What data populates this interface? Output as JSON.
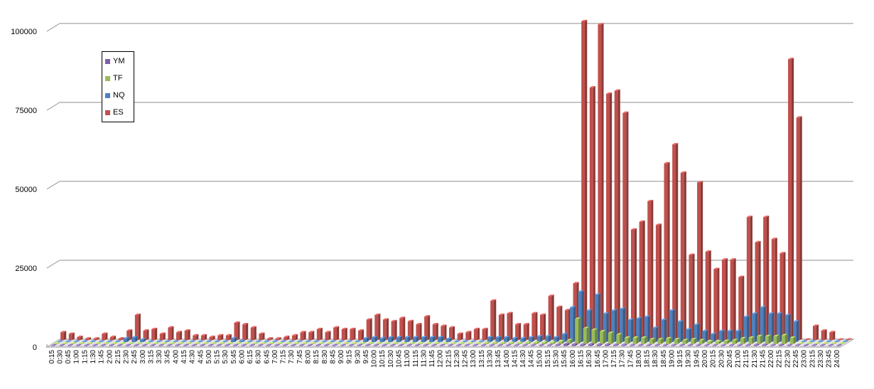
{
  "chart_data": {
    "type": "bar",
    "title": "",
    "xlabel": "",
    "ylabel": "",
    "ylim": [
      0,
      100000
    ],
    "yticks": [
      "0",
      "25000",
      "50000",
      "75000",
      "100000"
    ],
    "grid": true,
    "legend_position": "top-left",
    "categories": [
      "0:15",
      "0:30",
      "0:45",
      "1:00",
      "1:15",
      "1:30",
      "1:45",
      "2:00",
      "2:15",
      "2:30",
      "2:45",
      "3:00",
      "3:15",
      "3:30",
      "3:45",
      "4:00",
      "4:15",
      "4:30",
      "4:45",
      "5:00",
      "5:15",
      "5:30",
      "5:45",
      "6:00",
      "6:15",
      "6:30",
      "6:45",
      "7:00",
      "7:15",
      "7:30",
      "7:45",
      "8:00",
      "8:15",
      "8:30",
      "8:45",
      "9:00",
      "9:15",
      "9:30",
      "9:45",
      "10:00",
      "10:15",
      "10:30",
      "10:45",
      "11:00",
      "11:15",
      "11:30",
      "11:45",
      "12:00",
      "12:15",
      "12:30",
      "12:45",
      "13:00",
      "13:15",
      "13:30",
      "13:45",
      "14:00",
      "14:15",
      "14:30",
      "14:45",
      "15:00",
      "15:15",
      "15:30",
      "15:45",
      "16:00",
      "16:15",
      "16:30",
      "16:45",
      "17:00",
      "17:15",
      "17:30",
      "17:45",
      "18:00",
      "18:15",
      "18:30",
      "18:45",
      "19:00",
      "19:15",
      "19:30",
      "19:45",
      "20:00",
      "20:15",
      "20:30",
      "20:45",
      "21:00",
      "21:15",
      "21:30",
      "21:45",
      "22:00",
      "22:15",
      "22:30",
      "22:45",
      "23:00",
      "23:15",
      "23:30",
      "23:45",
      "24:00"
    ],
    "series": [
      {
        "name": "YM",
        "color": "#7f5fa8",
        "values": [
          0,
          0,
          0,
          0,
          0,
          0,
          0,
          0,
          100,
          100,
          50,
          0,
          0,
          0,
          0,
          0,
          0,
          0,
          0,
          0,
          0,
          0,
          0,
          0,
          0,
          0,
          0,
          0,
          0,
          0,
          0,
          0,
          0,
          0,
          0,
          0,
          0,
          100,
          100,
          100,
          100,
          100,
          100,
          100,
          100,
          100,
          100,
          100,
          0,
          0,
          0,
          0,
          100,
          100,
          100,
          100,
          100,
          100,
          200,
          200,
          200,
          300,
          600,
          500,
          400,
          500,
          400,
          400,
          300,
          300,
          200,
          200,
          200,
          200,
          200,
          200,
          200,
          200,
          200,
          100,
          100,
          100,
          100,
          200,
          200,
          300,
          300,
          200,
          300,
          200,
          0,
          0,
          0,
          0,
          0,
          0
        ]
      },
      {
        "name": "TF",
        "color": "#9bbb59",
        "values": [
          0,
          0,
          0,
          0,
          0,
          0,
          0,
          0,
          100,
          100,
          50,
          0,
          0,
          0,
          0,
          0,
          0,
          0,
          0,
          0,
          0,
          0,
          0,
          0,
          0,
          0,
          0,
          0,
          0,
          0,
          0,
          0,
          0,
          0,
          0,
          0,
          0,
          200,
          200,
          200,
          200,
          200,
          200,
          200,
          200,
          200,
          200,
          100,
          0,
          0,
          0,
          0,
          300,
          300,
          300,
          300,
          300,
          400,
          500,
          500,
          500,
          800,
          1200,
          8000,
          5000,
          4500,
          4000,
          3500,
          3000,
          2000,
          2000,
          2000,
          1500,
          1500,
          1800,
          1500,
          1200,
          1500,
          1200,
          800,
          800,
          1000,
          1200,
          1800,
          2000,
          2500,
          2500,
          2500,
          2800,
          2000,
          0,
          0,
          0,
          0,
          0,
          0
        ]
      },
      {
        "name": "NQ",
        "color": "#4f81bd",
        "values": [
          0,
          0,
          0,
          0,
          0,
          0,
          0,
          0,
          1200,
          1500,
          800,
          200,
          0,
          0,
          0,
          0,
          0,
          0,
          0,
          0,
          0,
          1200,
          400,
          0,
          0,
          0,
          0,
          0,
          0,
          0,
          0,
          0,
          0,
          0,
          0,
          0,
          0,
          1200,
          1500,
          1200,
          1500,
          1500,
          1500,
          1500,
          1500,
          1500,
          1500,
          1000,
          0,
          0,
          0,
          0,
          1500,
          1500,
          1500,
          1200,
          1200,
          1500,
          1800,
          1800,
          1500,
          2500,
          11000,
          16000,
          10000,
          15000,
          9000,
          10000,
          10500,
          7000,
          7500,
          8000,
          4500,
          7000,
          10000,
          6500,
          4000,
          5500,
          3500,
          2500,
          3500,
          3500,
          3500,
          8000,
          9000,
          11000,
          9000,
          9000,
          8500,
          6500,
          0,
          200,
          200,
          0,
          0,
          0
        ]
      },
      {
        "name": "ES",
        "color": "#c0504d",
        "values": [
          2500,
          2000,
          1000,
          500,
          500,
          2000,
          1000,
          500,
          3000,
          8000,
          3000,
          3500,
          2000,
          4000,
          2500,
          3000,
          1500,
          1500,
          1000,
          1500,
          1500,
          5500,
          5000,
          4000,
          2000,
          500,
          500,
          1000,
          1500,
          2500,
          2500,
          3500,
          2500,
          4000,
          3500,
          3500,
          3000,
          6500,
          8000,
          6500,
          6000,
          7000,
          6000,
          5000,
          7500,
          5000,
          4500,
          4000,
          2000,
          2500,
          3500,
          3500,
          12500,
          8000,
          8500,
          5000,
          5000,
          8500,
          8000,
          14000,
          10500,
          9500,
          18000,
          101000,
          80000,
          100000,
          78000,
          79000,
          72000,
          35000,
          37500,
          44000,
          36500,
          56000,
          62000,
          53000,
          27000,
          50000,
          28000,
          22500,
          25500,
          25500,
          20000,
          39000,
          31000,
          39000,
          32000,
          27500,
          89000,
          70500,
          0,
          4500,
          3000,
          2500,
          0,
          0
        ]
      }
    ]
  },
  "legend": {
    "items": [
      {
        "label": "YM",
        "color": "#7f5fa8"
      },
      {
        "label": "TF",
        "color": "#9bbb59"
      },
      {
        "label": "NQ",
        "color": "#4f81bd"
      },
      {
        "label": "ES",
        "color": "#c0504d"
      }
    ]
  }
}
